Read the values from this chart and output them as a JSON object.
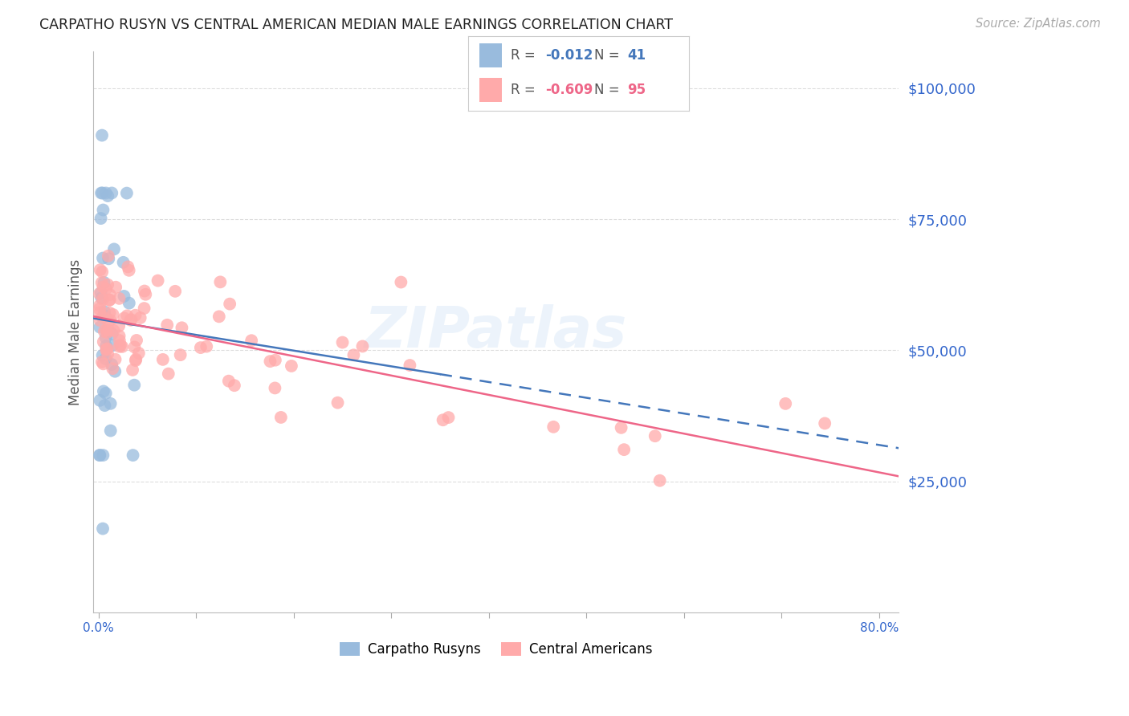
{
  "title": "CARPATHO RUSYN VS CENTRAL AMERICAN MEDIAN MALE EARNINGS CORRELATION CHART",
  "source": "Source: ZipAtlas.com",
  "ylabel": "Median Male Earnings",
  "ytick_labels": [
    "$25,000",
    "$50,000",
    "$75,000",
    "$100,000"
  ],
  "ytick_values": [
    25000,
    50000,
    75000,
    100000
  ],
  "ymin": 0,
  "ymax": 107000,
  "xmin": -0.005,
  "xmax": 0.82,
  "legend_R1": "-0.012",
  "legend_N1": "41",
  "legend_R2": "-0.609",
  "legend_N2": "95",
  "blue_color": "#99BBDD",
  "pink_color": "#FFAAAA",
  "line_blue": "#4477BB",
  "line_pink": "#EE6688",
  "text_blue": "#3366CC",
  "grid_color": "#DDDDDD",
  "blue_line_x": [
    0.0,
    0.8
  ],
  "blue_line_y_solid_end": 0.35,
  "blue_regression_slope": -30000,
  "blue_regression_intercept": 62000,
  "pink_regression_slope": -40000,
  "pink_regression_intercept": 57000
}
